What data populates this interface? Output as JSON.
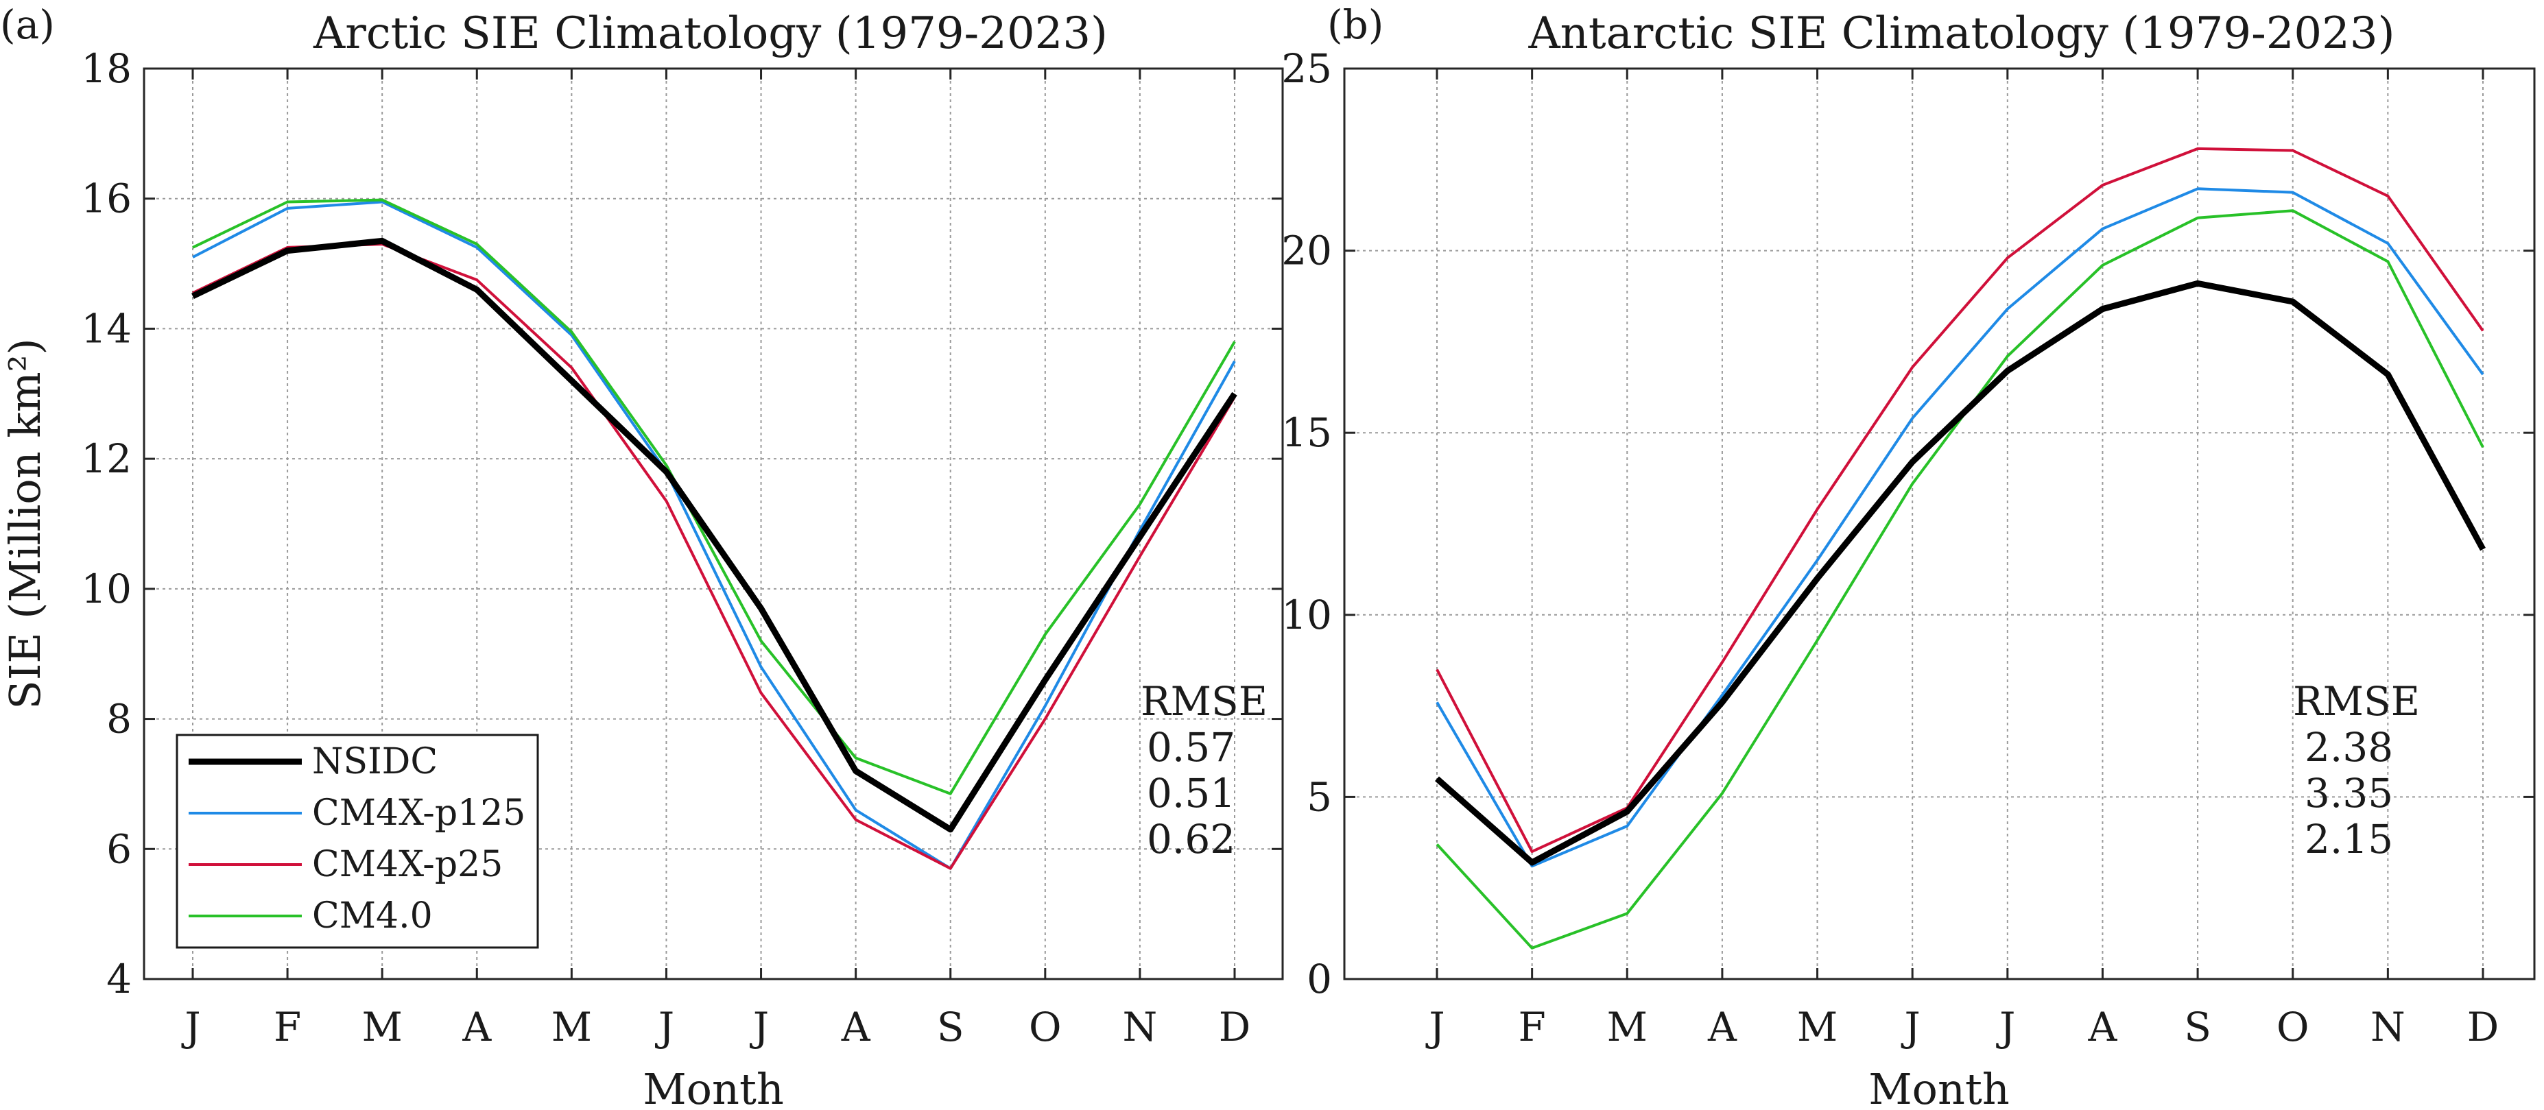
{
  "chart_data": [
    {
      "type": "line",
      "panel_label": "(a)",
      "title": "Arctic SIE Climatology (1979-2023)",
      "xlabel": "Month",
      "ylabel": "SIE (Million km²)",
      "categories": [
        "J",
        "F",
        "M",
        "A",
        "M",
        "J",
        "J",
        "A",
        "S",
        "O",
        "N",
        "D"
      ],
      "ylim": [
        4,
        18
      ],
      "yticks": [
        "4",
        "6",
        "8",
        "10",
        "12",
        "14",
        "16",
        "18"
      ],
      "grid": true,
      "legend_position": "bottom-left",
      "series": [
        {
          "name": "NSIDC",
          "color": "#000000",
          "values": [
            14.5,
            15.2,
            15.35,
            14.6,
            13.2,
            11.8,
            9.7,
            7.2,
            6.3,
            8.6,
            10.8,
            13.0
          ]
        },
        {
          "name": "CM4X-p125",
          "color": "#1f8ae6",
          "values": [
            15.1,
            15.85,
            15.95,
            15.25,
            13.9,
            11.8,
            8.8,
            6.6,
            5.7,
            8.2,
            10.9,
            13.5
          ]
        },
        {
          "name": "CM4X-p25",
          "color": "#d0103a",
          "values": [
            14.55,
            15.25,
            15.3,
            14.75,
            13.4,
            11.35,
            8.4,
            6.45,
            5.7,
            8.0,
            10.5,
            12.95
          ]
        },
        {
          "name": "CM4.0",
          "color": "#28c128",
          "values": [
            15.25,
            15.95,
            15.98,
            15.3,
            13.95,
            11.9,
            9.2,
            7.4,
            6.85,
            9.3,
            11.3,
            13.8
          ]
        }
      ],
      "rmse": {
        "label": "RMSE",
        "values": [
          "0.57",
          "0.51",
          "0.62"
        ]
      }
    },
    {
      "type": "line",
      "panel_label": "(b)",
      "title": "Antarctic SIE Climatology (1979-2023)",
      "xlabel": "Month",
      "ylabel": "",
      "categories": [
        "J",
        "F",
        "M",
        "A",
        "M",
        "J",
        "J",
        "A",
        "S",
        "O",
        "N",
        "D"
      ],
      "ylim": [
        0,
        25
      ],
      "yticks": [
        "0",
        "5",
        "10",
        "15",
        "20",
        "25"
      ],
      "grid": true,
      "series": [
        {
          "name": "NSIDC",
          "color": "#000000",
          "values": [
            5.5,
            3.2,
            4.6,
            7.6,
            11.0,
            14.2,
            16.7,
            18.4,
            19.1,
            18.6,
            16.6,
            11.8
          ]
        },
        {
          "name": "CM4X-p125",
          "color": "#1f8ae6",
          "values": [
            7.6,
            3.1,
            4.2,
            7.8,
            11.5,
            15.4,
            18.4,
            20.6,
            21.7,
            21.6,
            20.2,
            16.6
          ]
        },
        {
          "name": "CM4X-p25",
          "color": "#d0103a",
          "values": [
            8.5,
            3.5,
            4.7,
            8.7,
            12.9,
            16.8,
            19.8,
            21.8,
            22.8,
            22.75,
            21.5,
            17.8
          ]
        },
        {
          "name": "CM4.0",
          "color": "#28c128",
          "values": [
            3.7,
            0.85,
            1.8,
            5.1,
            9.3,
            13.6,
            17.1,
            19.6,
            20.9,
            21.1,
            19.7,
            14.6
          ]
        }
      ],
      "rmse": {
        "label": "RMSE",
        "values": [
          "2.38",
          "3.35",
          "2.15"
        ]
      }
    }
  ]
}
